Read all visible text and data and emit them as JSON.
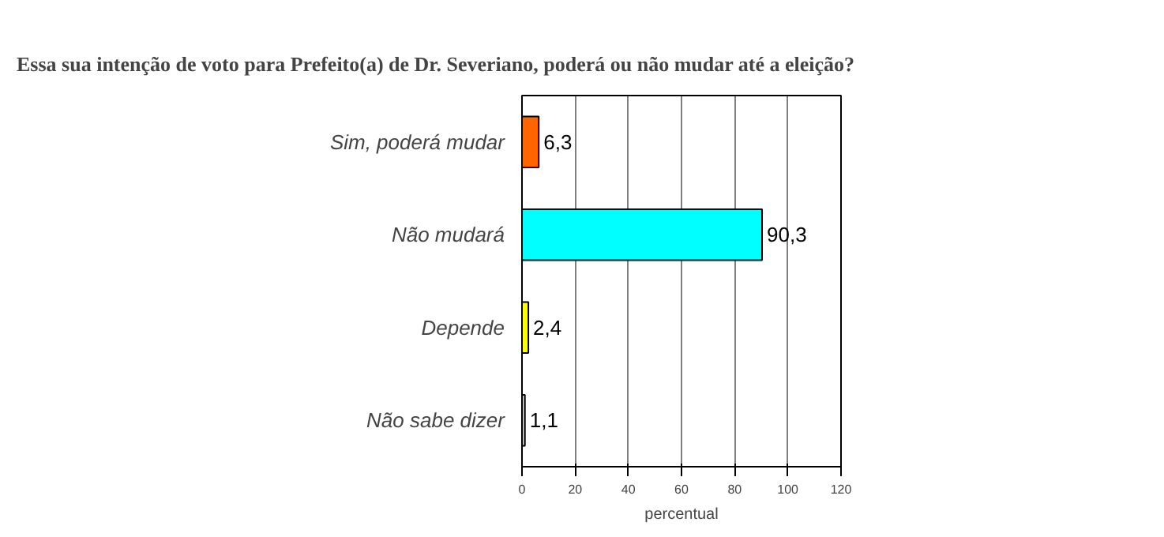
{
  "chart_data": {
    "type": "bar",
    "orientation": "horizontal",
    "title": "Essa sua intenção de voto para Prefeito(a) de Dr. Severiano, poderá ou não mudar até a eleição?",
    "xlabel": "percentual",
    "categories": [
      "Sim, poderá mudar",
      "Não mudará",
      "Depende",
      "Não sabe dizer"
    ],
    "values": [
      6.3,
      90.3,
      2.4,
      1.1
    ],
    "colors": [
      "#ff6600",
      "#00ffff",
      "#ffff00",
      "#d9d9d9"
    ],
    "value_labels": [
      "6,3",
      "90,3",
      "2,4",
      "1,1"
    ],
    "xlim": [
      0,
      120
    ],
    "xticks": [
      0,
      20,
      40,
      60,
      80,
      100,
      120
    ],
    "grid": "x"
  }
}
